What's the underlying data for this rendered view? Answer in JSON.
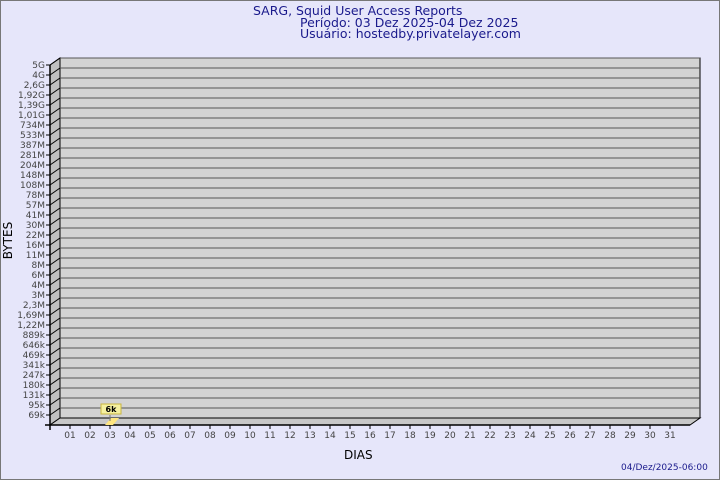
{
  "chart_data": {
    "type": "bar",
    "title": "SARG, Squid User Access Reports",
    "subtitle": [
      "Período: 03 Dez 2025-04 Dez 2025",
      "Usuário: hostedby.privatelayer.com"
    ],
    "xlabel": "DIAS",
    "ylabel": "BYTES",
    "yscale": "log",
    "ytick_labels": [
      "5G",
      "4G",
      "2,6G",
      "1,92G",
      "1,39G",
      "1,01G",
      "734M",
      "533M",
      "387M",
      "281M",
      "204M",
      "148M",
      "108M",
      "78M",
      "57M",
      "41M",
      "30M",
      "22M",
      "16M",
      "11M",
      "8M",
      "6M",
      "4M",
      "3M",
      "2,3M",
      "1,69M",
      "1,22M",
      "889k",
      "646k",
      "469k",
      "341k",
      "247k",
      "180k",
      "131k",
      "95k",
      "69k"
    ],
    "categories": [
      "01",
      "02",
      "03",
      "04",
      "05",
      "06",
      "07",
      "08",
      "09",
      "10",
      "11",
      "12",
      "13",
      "14",
      "15",
      "16",
      "17",
      "18",
      "19",
      "20",
      "21",
      "22",
      "23",
      "24",
      "25",
      "26",
      "27",
      "28",
      "29",
      "30",
      "31"
    ],
    "values": [
      null,
      null,
      6000,
      null,
      null,
      null,
      null,
      null,
      null,
      null,
      null,
      null,
      null,
      null,
      null,
      null,
      null,
      null,
      null,
      null,
      null,
      null,
      null,
      null,
      null,
      null,
      null,
      null,
      null,
      null,
      null
    ],
    "data_labels": {
      "03": "6k"
    },
    "grid": true,
    "colors": {
      "bar": "#ffe680",
      "label_bg": "#f5f0a0",
      "wall": "#d3d3d3",
      "text": "#1a1a8c"
    }
  },
  "footer": {
    "timestamp": "04/Dez/2025-06:00"
  }
}
